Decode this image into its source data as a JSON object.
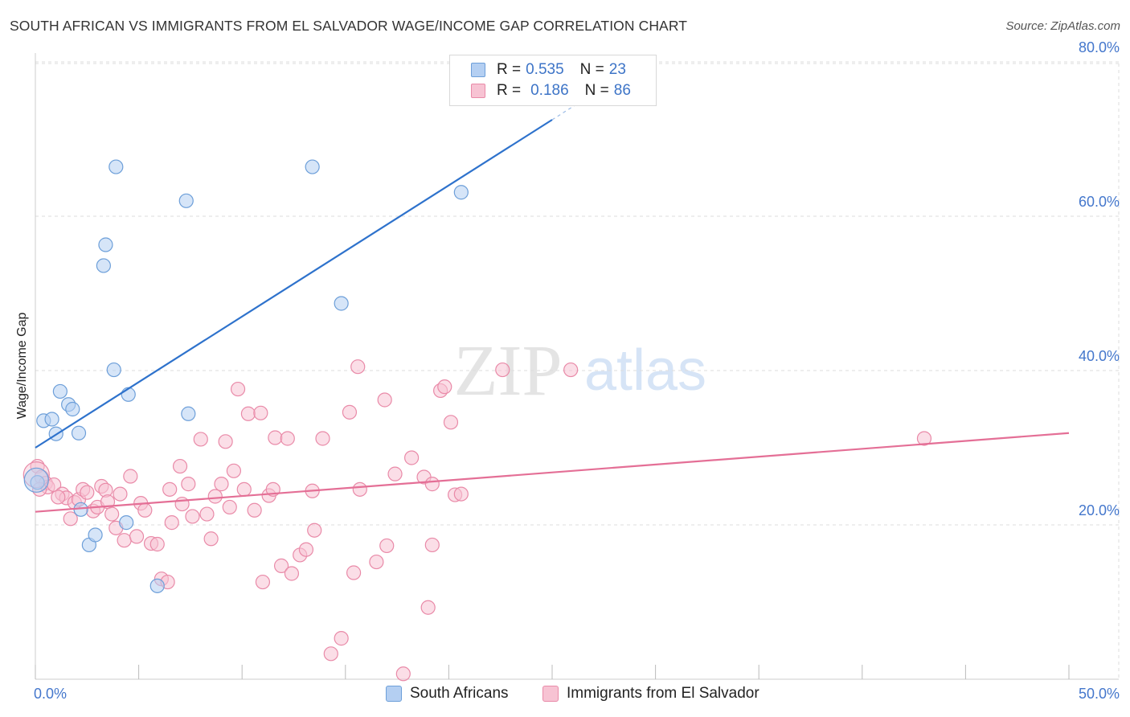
{
  "title": "SOUTH AFRICAN VS IMMIGRANTS FROM EL SALVADOR WAGE/INCOME GAP CORRELATION CHART",
  "source": "Source: ZipAtlas.com",
  "watermark": {
    "zip": "ZIP",
    "atlas": "atlas"
  },
  "legend": {
    "rows": [
      {
        "r_label": "R =",
        "r_value": "0.535",
        "n_label": "N =",
        "n_value": "23"
      },
      {
        "r_label": "R =",
        "r_value": "0.186",
        "n_label": "N =",
        "n_value": "86"
      }
    ]
  },
  "bottom_legend": [
    "South Africans",
    "Immigrants from El Salvador"
  ],
  "colors": {
    "blue_fill": "#b4cff2",
    "blue_stroke": "#6d9fd9",
    "blue_line": "#2e72cc",
    "pink_fill": "#f7c3d3",
    "pink_stroke": "#e98aa8",
    "pink_line": "#e46f96",
    "tick_label": "#4477cc",
    "grid": "#dddddd"
  },
  "chart_data": {
    "type": "scatter",
    "title": "SOUTH AFRICAN VS IMMIGRANTS FROM EL SALVADOR WAGE/INCOME GAP CORRELATION CHART",
    "xlabel": "",
    "ylabel": "Wage/Income Gap",
    "xlim": [
      0,
      50
    ],
    "ylim": [
      0,
      83
    ],
    "x_tick_labels": [
      {
        "value": 0,
        "label": "0.0%"
      },
      {
        "value": 50,
        "label": "50.0%"
      }
    ],
    "y_tick_labels": [
      {
        "value": 20,
        "label": "20.0%"
      },
      {
        "value": 40,
        "label": "40.0%"
      },
      {
        "value": 60,
        "label": "60.0%"
      },
      {
        "value": 80,
        "label": "80.0%"
      }
    ],
    "x_minor_ticks": [
      0,
      5,
      10,
      15,
      20,
      25,
      30,
      35,
      40,
      45,
      50
    ],
    "grid": true,
    "series": [
      {
        "name": "South Africans",
        "color": "#6d9fd9",
        "R": 0.535,
        "N": 23,
        "trend": {
          "x0": 0,
          "y0": 30.0,
          "x1": 25,
          "y1": 72.5,
          "dash_to_x": 27.5
        },
        "points": [
          [
            0.1,
            25.5
          ],
          [
            0.4,
            33.5
          ],
          [
            0.8,
            33.7
          ],
          [
            1.0,
            31.8
          ],
          [
            1.2,
            37.3
          ],
          [
            1.6,
            35.6
          ],
          [
            1.8,
            35.0
          ],
          [
            2.1,
            31.9
          ],
          [
            2.2,
            22.0
          ],
          [
            2.6,
            17.4
          ],
          [
            2.9,
            18.7
          ],
          [
            3.3,
            53.6
          ],
          [
            3.4,
            56.3
          ],
          [
            3.8,
            40.1
          ],
          [
            3.9,
            66.4
          ],
          [
            4.5,
            36.9
          ],
          [
            4.4,
            20.3
          ],
          [
            5.9,
            12.1
          ],
          [
            7.3,
            62.0
          ],
          [
            7.4,
            34.4
          ],
          [
            13.4,
            66.4
          ],
          [
            14.8,
            48.7
          ],
          [
            20.6,
            63.1
          ]
        ]
      },
      {
        "name": "Immigrants from El Salvador",
        "color": "#e98aa8",
        "R": 0.186,
        "N": 86,
        "trend": {
          "x0": 0,
          "y0": 21.7,
          "x1": 50,
          "y1": 31.9
        },
        "points": [
          [
            0.1,
            27.6
          ],
          [
            0.3,
            26.2
          ],
          [
            0.5,
            25.4
          ],
          [
            0.6,
            24.9
          ],
          [
            0.9,
            25.2
          ],
          [
            1.3,
            24.0
          ],
          [
            1.5,
            23.5
          ],
          [
            1.7,
            20.8
          ],
          [
            1.9,
            22.9
          ],
          [
            2.1,
            23.3
          ],
          [
            2.3,
            24.6
          ],
          [
            2.5,
            24.2
          ],
          [
            2.8,
            21.8
          ],
          [
            3.0,
            22.3
          ],
          [
            3.2,
            25.0
          ],
          [
            3.4,
            24.5
          ],
          [
            3.5,
            23.0
          ],
          [
            3.7,
            21.4
          ],
          [
            3.9,
            19.6
          ],
          [
            4.1,
            24.0
          ],
          [
            4.3,
            18.0
          ],
          [
            4.6,
            26.3
          ],
          [
            4.9,
            18.5
          ],
          [
            5.1,
            22.8
          ],
          [
            5.3,
            21.9
          ],
          [
            5.6,
            17.6
          ],
          [
            5.9,
            17.5
          ],
          [
            6.1,
            13.0
          ],
          [
            6.4,
            12.6
          ],
          [
            6.5,
            24.6
          ],
          [
            6.6,
            20.3
          ],
          [
            7.0,
            27.6
          ],
          [
            7.1,
            22.7
          ],
          [
            7.4,
            25.3
          ],
          [
            7.6,
            21.1
          ],
          [
            8.0,
            31.1
          ],
          [
            8.3,
            21.4
          ],
          [
            8.5,
            18.2
          ],
          [
            8.7,
            23.7
          ],
          [
            9.0,
            25.3
          ],
          [
            9.2,
            30.8
          ],
          [
            9.4,
            22.3
          ],
          [
            9.6,
            27.0
          ],
          [
            9.8,
            37.6
          ],
          [
            10.1,
            24.6
          ],
          [
            10.3,
            34.4
          ],
          [
            10.6,
            21.9
          ],
          [
            10.9,
            34.5
          ],
          [
            11.0,
            12.6
          ],
          [
            11.3,
            23.8
          ],
          [
            11.5,
            24.6
          ],
          [
            11.6,
            31.3
          ],
          [
            11.9,
            14.7
          ],
          [
            12.2,
            31.2
          ],
          [
            12.4,
            13.7
          ],
          [
            12.8,
            16.1
          ],
          [
            13.1,
            16.8
          ],
          [
            13.4,
            24.4
          ],
          [
            13.5,
            19.3
          ],
          [
            13.9,
            31.2
          ],
          [
            14.3,
            3.3
          ],
          [
            14.8,
            5.3
          ],
          [
            15.2,
            34.6
          ],
          [
            15.4,
            13.8
          ],
          [
            15.6,
            40.5
          ],
          [
            15.7,
            24.6
          ],
          [
            16.5,
            15.2
          ],
          [
            16.9,
            36.2
          ],
          [
            17.0,
            17.3
          ],
          [
            17.4,
            26.6
          ],
          [
            17.8,
            0.7
          ],
          [
            18.2,
            28.7
          ],
          [
            18.8,
            26.2
          ],
          [
            19.2,
            17.4
          ],
          [
            19.0,
            9.3
          ],
          [
            19.2,
            25.3
          ],
          [
            19.6,
            37.4
          ],
          [
            19.8,
            37.9
          ],
          [
            20.1,
            33.3
          ],
          [
            20.3,
            23.9
          ],
          [
            20.6,
            24.0
          ],
          [
            22.6,
            40.1
          ],
          [
            25.9,
            40.1
          ],
          [
            43.0,
            31.2
          ],
          [
            0.2,
            24.6
          ],
          [
            1.1,
            23.6
          ]
        ]
      }
    ]
  }
}
